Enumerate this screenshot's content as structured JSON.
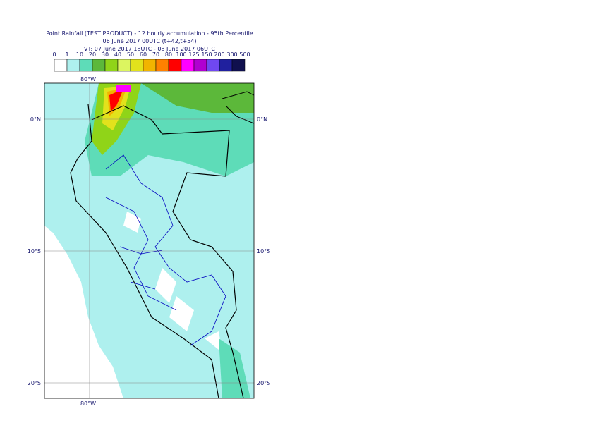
{
  "header": {
    "title": "Point Rainfall (TEST PRODUCT) - 12 hourly accumulation - 95th Percentile",
    "base_time": "06 June 2017 00UTC (t+42,t+54)",
    "valid_time": "VT: 07 June 2017 18UTC - 08 June 2017 06UTC"
  },
  "legend": {
    "levels": [
      0,
      1,
      10,
      20,
      30,
      40,
      50,
      60,
      70,
      80,
      100,
      125,
      150,
      200,
      300,
      500
    ],
    "colors": [
      "#ffffff",
      "#aef0ee",
      "#5edcb8",
      "#5cb83a",
      "#90d418",
      "#dcf560",
      "#e2e21c",
      "#f2b400",
      "#ff8000",
      "#ff0000",
      "#ff00ff",
      "#b000d0",
      "#7048f0",
      "#20209e",
      "#10104e"
    ]
  },
  "map": {
    "lat_labels": [
      "0°N",
      "10°S",
      "20°S"
    ],
    "lon_label": "80°W"
  }
}
